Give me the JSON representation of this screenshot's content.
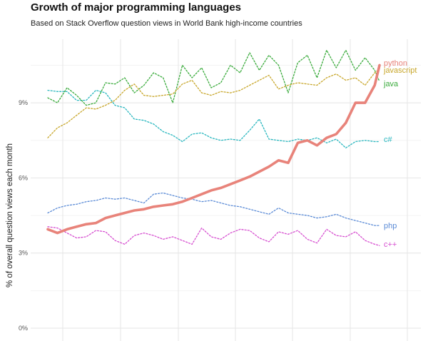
{
  "chart_data": {
    "type": "line",
    "title": "Growth of major programming languages",
    "subtitle": "Based on Stack Overflow question views in World Bank high-income countries",
    "xlabel": "",
    "ylabel": "% of overall question views each month",
    "ylim": [
      0,
      11
    ],
    "xlim": [
      0,
      69
    ],
    "yticks": [
      0,
      3,
      6,
      9
    ],
    "ytick_labels": [
      "0%",
      "3%",
      "6%",
      "9%"
    ],
    "grid": true,
    "legend": "direct-labels-right",
    "x": [
      0,
      2,
      4,
      6,
      8,
      10,
      12,
      14,
      16,
      18,
      20,
      22,
      24,
      26,
      28,
      30,
      32,
      34,
      36,
      38,
      40,
      42,
      44,
      46,
      48,
      50,
      52,
      54,
      56,
      58,
      60,
      62,
      64,
      66,
      68,
      69
    ],
    "series": [
      {
        "name": "python",
        "label": "python",
        "color": "#e8837a",
        "style": "solid",
        "values": [
          3.95,
          3.8,
          3.95,
          4.05,
          4.15,
          4.2,
          4.4,
          4.5,
          4.6,
          4.7,
          4.75,
          4.85,
          4.9,
          4.95,
          5.05,
          5.2,
          5.35,
          5.5,
          5.6,
          5.75,
          5.9,
          6.05,
          6.25,
          6.45,
          6.7,
          6.6,
          7.4,
          7.5,
          7.3,
          7.6,
          7.75,
          8.2,
          9.0,
          9.0,
          9.7,
          10.5
        ]
      },
      {
        "name": "javascript",
        "label": "javascript",
        "color": "#c8a72c",
        "style": "dotted",
        "values": [
          7.6,
          8.0,
          8.2,
          8.5,
          8.8,
          8.75,
          8.9,
          9.1,
          9.5,
          9.75,
          9.3,
          9.25,
          9.3,
          9.35,
          9.75,
          9.9,
          9.4,
          9.3,
          9.45,
          9.4,
          9.5,
          9.7,
          9.9,
          10.1,
          9.55,
          9.7,
          9.8,
          9.75,
          9.7,
          10.0,
          10.15,
          9.9,
          10.0,
          9.7,
          10.2,
          10.35
        ]
      },
      {
        "name": "java",
        "label": "java",
        "color": "#3aab3c",
        "style": "dotted",
        "values": [
          9.2,
          9.0,
          9.6,
          9.3,
          8.9,
          9.0,
          9.8,
          9.75,
          10.0,
          9.4,
          9.7,
          10.2,
          10.0,
          9.0,
          10.5,
          10.0,
          10.4,
          9.6,
          9.8,
          10.5,
          10.2,
          11.0,
          10.3,
          10.9,
          10.5,
          9.4,
          10.6,
          10.9,
          10.0,
          11.1,
          10.4,
          11.1,
          10.3,
          10.8,
          10.3,
          9.85
        ]
      },
      {
        "name": "c#",
        "label": "c#",
        "color": "#2ab7bf",
        "style": "dotted",
        "values": [
          9.5,
          9.45,
          9.45,
          9.1,
          9.1,
          9.5,
          9.4,
          8.9,
          8.8,
          8.35,
          8.3,
          8.15,
          7.85,
          7.7,
          7.45,
          7.75,
          7.8,
          7.6,
          7.5,
          7.55,
          7.5,
          7.9,
          8.35,
          7.55,
          7.5,
          7.45,
          7.55,
          7.5,
          7.6,
          7.4,
          7.55,
          7.2,
          7.45,
          7.5,
          7.45,
          7.45
        ]
      },
      {
        "name": "php",
        "label": "php",
        "color": "#5b8bd6",
        "style": "dotted",
        "values": [
          4.6,
          4.8,
          4.9,
          4.95,
          5.05,
          5.1,
          5.2,
          5.15,
          5.2,
          5.1,
          5.0,
          5.35,
          5.4,
          5.3,
          5.2,
          5.15,
          5.05,
          5.1,
          5.0,
          4.9,
          4.85,
          4.75,
          4.65,
          4.55,
          4.8,
          4.6,
          4.55,
          4.5,
          4.4,
          4.45,
          4.55,
          4.4,
          4.3,
          4.2,
          4.1,
          4.1
        ]
      },
      {
        "name": "c++",
        "label": "c++",
        "color": "#d64fd0",
        "style": "dotted",
        "values": [
          4.05,
          4.0,
          3.8,
          3.6,
          3.65,
          3.9,
          3.85,
          3.5,
          3.35,
          3.7,
          3.8,
          3.7,
          3.55,
          3.65,
          3.5,
          3.35,
          4.0,
          3.65,
          3.55,
          3.8,
          3.95,
          3.9,
          3.6,
          3.45,
          3.85,
          3.75,
          3.9,
          3.55,
          3.4,
          3.95,
          3.7,
          3.65,
          3.85,
          3.5,
          3.35,
          3.3
        ]
      }
    ]
  }
}
